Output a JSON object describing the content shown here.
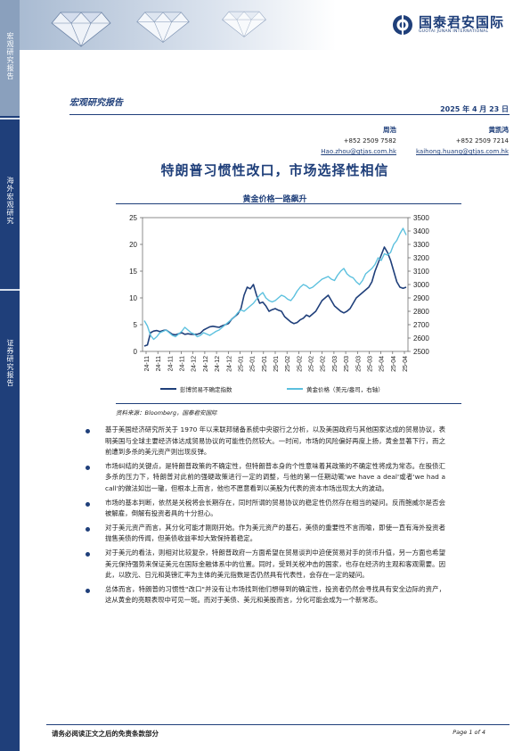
{
  "sidebar": {
    "labels": [
      "宏观研究报告",
      "海外宏观研究",
      "证券研究报告"
    ]
  },
  "brand": {
    "name_cn": "国泰君安国际",
    "name_en": "GUOTAI JUNAN INTERNATIONAL",
    "color": "#1f3f7a"
  },
  "report": {
    "type": "宏观研究报告",
    "date": "2025 年 4 月 23 日"
  },
  "authors": [
    {
      "name": "周浩",
      "phone": "+852 2509 7582",
      "email": "Hao.zhou@gtjas.com.hk"
    },
    {
      "name": "黄凯鸿",
      "phone": "+852 2509 7214",
      "email": "kaihong.huang@gtjas.com.hk"
    }
  ],
  "title": "特朗普习惯性改口，市场选择性相信",
  "chart_title": "黄金价格一路飙升",
  "chart_data": {
    "type": "line",
    "x_ticks": [
      "24-11",
      "24-11",
      "24-11",
      "24-11",
      "24-12",
      "24-12",
      "24-12",
      "24-12",
      "25-01",
      "25-01",
      "25-01",
      "25-01",
      "25-02",
      "25-02",
      "25-02",
      "25-02",
      "25-03",
      "25-03",
      "25-03",
      "25-03",
      "25-04",
      "25-04",
      "25-04"
    ],
    "y_left": {
      "ticks": [
        "0",
        "5",
        "10",
        "15",
        "20",
        "25"
      ],
      "lim": [
        0,
        25
      ]
    },
    "y_right": {
      "ticks": [
        "2500",
        "2600",
        "2700",
        "2800",
        "2900",
        "3000",
        "3100",
        "3200",
        "3300",
        "3400",
        "3500"
      ],
      "lim": [
        2500,
        3500
      ]
    },
    "series": [
      {
        "name": "彭博贸易不确定指数",
        "axis": "left",
        "color": "#1f3f7a",
        "values": [
          1,
          1.2,
          3.5,
          3.8,
          3.9,
          3.7,
          3.9,
          4,
          3.6,
          3.2,
          3.1,
          3.3,
          3.5,
          3.2,
          3.3,
          3.2,
          3.2,
          3.2,
          3.4,
          4,
          4.3,
          4.6,
          4.7,
          4.6,
          4.5,
          4.8,
          5,
          5.2,
          6,
          6.5,
          7,
          8,
          10.5,
          12,
          11.7,
          12.5,
          10.5,
          9,
          9.2,
          8.5,
          7.5,
          7.8,
          8,
          7.7,
          7.5,
          6.5,
          6,
          5.5,
          5.2,
          5.4,
          5.9,
          6.2,
          6.8,
          6.5,
          7,
          7.5,
          8.5,
          9.5,
          10,
          10.5,
          9.5,
          8.5,
          8,
          7.5,
          7.2,
          7.5,
          8,
          9,
          10,
          10.5,
          11,
          11.5,
          12,
          13,
          15,
          16.5,
          18,
          19.5,
          18.5,
          17,
          15,
          13,
          12,
          11.8,
          12
        ]
      },
      {
        "name": "黄金价格（美元/盎司，右轴）",
        "axis": "right",
        "color": "#5bc0de",
        "values": [
          2730,
          2690,
          2620,
          2590,
          2610,
          2640,
          2650,
          2660,
          2640,
          2620,
          2610,
          2630,
          2650,
          2680,
          2660,
          2640,
          2630,
          2610,
          2620,
          2640,
          2630,
          2620,
          2635,
          2650,
          2660,
          2680,
          2700,
          2720,
          2740,
          2760,
          2790,
          2810,
          2800,
          2820,
          2840,
          2860,
          2890,
          2920,
          2940,
          2900,
          2880,
          2870,
          2880,
          2900,
          2920,
          2910,
          2890,
          2880,
          2910,
          2950,
          2980,
          3000,
          2990,
          2970,
          2980,
          3000,
          3020,
          3040,
          3050,
          3060,
          3040,
          3030,
          3070,
          3100,
          3120,
          3080,
          3060,
          3050,
          3020,
          3000,
          3030,
          3080,
          3100,
          3120,
          3150,
          3200,
          3180,
          3230,
          3220,
          3240,
          3300,
          3330,
          3380,
          3420,
          3370
        ]
      }
    ]
  },
  "legend": [
    "彭博贸易不确定指数",
    "黄金价格（美元/盎司，右轴）"
  ],
  "source": "资料来源：Bloomberg，国泰君安国际",
  "bullets": [
    "基于美国经济研究所关于 1970 年以来联邦储备系统中央银行之分析，以及美国政府与其他国家达成的贸易协议，表明美国与全球主要经济体达成贸易协议的可能性仍然较大。一时间，市场的风险偏好再度上扬，黄金显著下行，而之前遭到多杀的美元资产则出现反弹。",
    "市场纠结的关键点，是特朗普政策的不确定性，但特朗普本身的个性意味着其政策的不确定性将成为常态。在股债汇多杀的压力下，特朗普对此前的强硬政策进行一定的调整，与他的第一任期动辄'we have a deal'或者'we had a call'的做法如出一辙，但根本上而言，他也不愿意看到以美股为代表的资本市场出现太大的波动。",
    "市场的基本判断，依然是关税将会长期存在，同时所谓的贸易协议的稳定性仍然存在相当的疑问。反而鲍威尔是否会被解雇，倒解有投资者具的十分担心。",
    "对于美元资产而言，其分化可能才刚刚开始。作为美元资产的基石，美债的重要性不言而喻，即使一直有海外投资者抛售美债的传闻，但美债收益率却大致保持着稳定。",
    "对于美元的看法，则相对比较复杂，特朗普政府一方面希望在贸易谈判中迫使贸易对手的货币升值，另一方面也希望美元保持强势来保证美元在国际金融体系中的位置。同时，受到关税冲击的国家，也存在经济的主观和客观需要。因此，以欧元、日元和英镑汇率为主体的美元指数是否仍然具有代表性，会存在一定的疑问。",
    "总体而言，特朗普的习惯性\"改口\"并没有让市场找到他们想得到的确定性，投资者仍然会寻找具有安全边际的资产，这从黄金的亮眼表现中可见一斑。而对于美债、美元和美股而言，分化可能会成为一个新常态。"
  ],
  "footer": {
    "disclaimer": "请务必阅读正文之后的免责条款部分",
    "page": "Page 1 of 4"
  }
}
